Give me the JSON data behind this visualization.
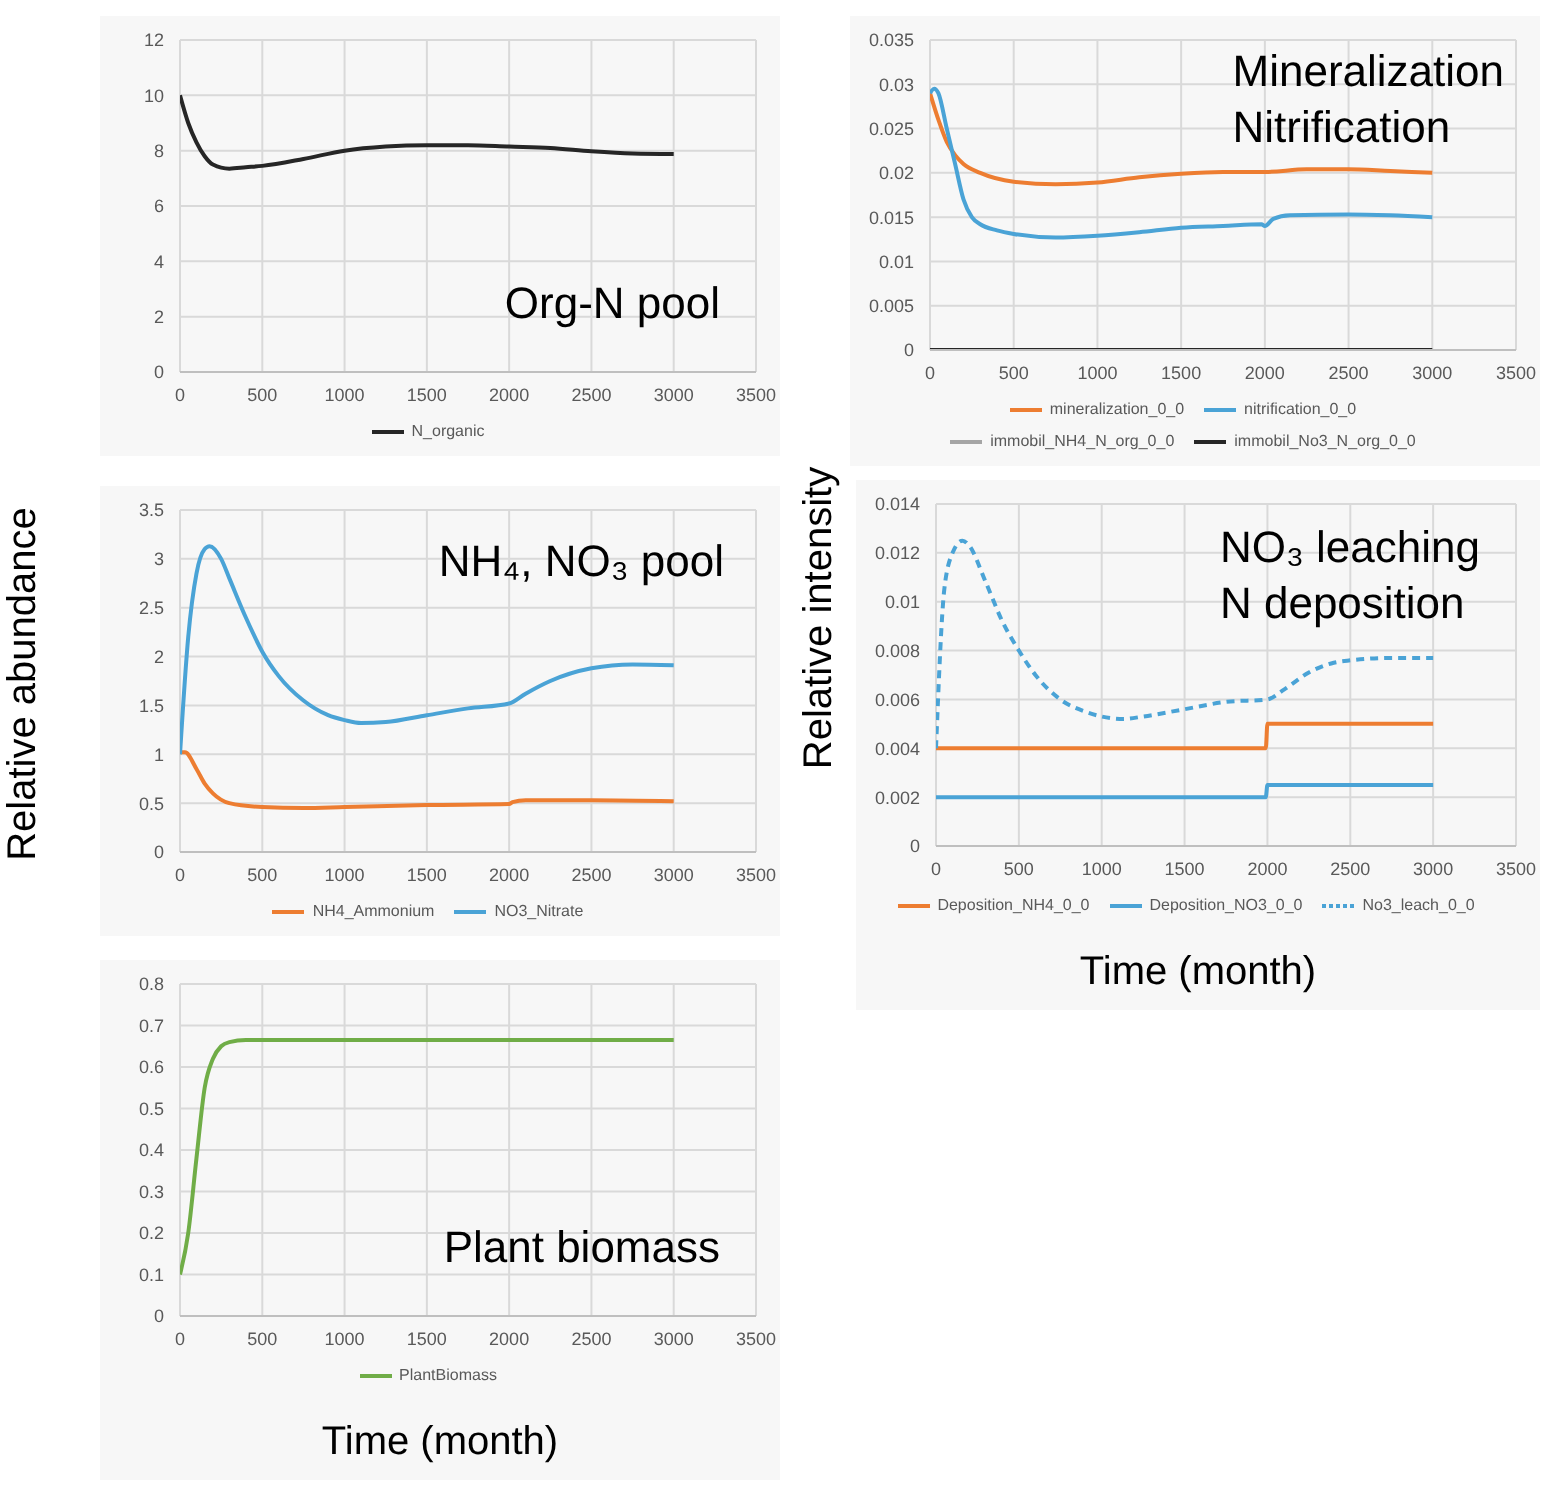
{
  "chart_data": [
    {
      "type": "line",
      "annotations": [
        "Org-N pool"
      ],
      "xlim": [
        0,
        3500
      ],
      "xticks": [
        0,
        500,
        1000,
        1500,
        2000,
        2500,
        3000,
        3500
      ],
      "ylim": [
        0,
        12
      ],
      "yticks": [
        0,
        2,
        4,
        6,
        8,
        10,
        12
      ],
      "grid": true,
      "legend": "bottom",
      "marker": "none",
      "series": [
        {
          "name": "N_organic",
          "color": "#262626",
          "x": [
            0,
            50,
            100,
            150,
            200,
            300,
            400,
            500,
            750,
            1000,
            1250,
            1500,
            1750,
            2000,
            2250,
            2500,
            2750,
            3000
          ],
          "values": [
            10,
            9,
            8.3,
            7.8,
            7.5,
            7.35,
            7.4,
            7.45,
            7.7,
            8.0,
            8.15,
            8.2,
            8.2,
            8.15,
            8.1,
            7.98,
            7.9,
            7.88
          ]
        }
      ]
    },
    {
      "type": "line",
      "annotations": [
        "Mineralization",
        "Nitrification"
      ],
      "xlim": [
        0,
        3500
      ],
      "xticks": [
        0,
        500,
        1000,
        1500,
        2000,
        2500,
        3000,
        3500
      ],
      "ylim": [
        0,
        0.035
      ],
      "yticks": [
        0,
        0.005,
        0.01,
        0.015,
        0.02,
        0.025,
        0.03,
        0.035
      ],
      "grid": true,
      "legend": "bottom",
      "marker": "none",
      "series": [
        {
          "name": "mineralization_0_0",
          "color": "#ed7d31",
          "x": [
            0,
            50,
            100,
            150,
            200,
            300,
            500,
            750,
            1000,
            1250,
            1500,
            1750,
            2000,
            2250,
            2500,
            2750,
            3000
          ],
          "values": [
            0.029,
            0.026,
            0.0235,
            0.022,
            0.021,
            0.02,
            0.019,
            0.0187,
            0.0189,
            0.0195,
            0.0199,
            0.0201,
            0.0201,
            0.0204,
            0.0204,
            0.0202,
            0.02
          ]
        },
        {
          "name": "nitrification_0_0",
          "color": "#4aa3d6",
          "x": [
            0,
            25,
            50,
            100,
            150,
            200,
            250,
            300,
            400,
            500,
            750,
            1000,
            1250,
            1500,
            1750,
            1980,
            2000,
            2050,
            2150,
            2500,
            2750,
            3000
          ],
          "values": [
            0.029,
            0.0295,
            0.029,
            0.025,
            0.021,
            0.017,
            0.015,
            0.0142,
            0.0135,
            0.0131,
            0.0127,
            0.0129,
            0.0133,
            0.0138,
            0.014,
            0.0142,
            0.014,
            0.0148,
            0.0152,
            0.0153,
            0.0152,
            0.015
          ]
        },
        {
          "name": "immobil_NH4_N_org_0_0",
          "color": "#a5a5a5"
        },
        {
          "name": "immobil_No3_N_org_0_0",
          "color": "#262626",
          "x": [
            0,
            3000
          ],
          "values": [
            0,
            0
          ]
        }
      ]
    },
    {
      "type": "line",
      "ylabel": "Relative abundance",
      "annotations": [
        "NH₄, NO₃ pool"
      ],
      "xlim": [
        0,
        3500
      ],
      "xticks": [
        0,
        500,
        1000,
        1500,
        2000,
        2500,
        3000,
        3500
      ],
      "ylim": [
        0,
        3.5
      ],
      "yticks": [
        0,
        0.5,
        1,
        1.5,
        2,
        2.5,
        3,
        3.5
      ],
      "grid": true,
      "legend": "bottom",
      "marker": "none",
      "series": [
        {
          "name": "NH4_Ammonium",
          "color": "#ed7d31",
          "x": [
            0,
            30,
            100,
            150,
            200,
            300,
            500,
            750,
            1000,
            1500,
            2000,
            2020,
            2100,
            2500,
            3000
          ],
          "values": [
            1.02,
            1.02,
            0.85,
            0.7,
            0.6,
            0.5,
            0.46,
            0.45,
            0.46,
            0.48,
            0.49,
            0.51,
            0.53,
            0.53,
            0.52
          ]
        },
        {
          "name": "NO3_Nitrate",
          "color": "#4aa3d6",
          "x": [
            0,
            50,
            100,
            150,
            180,
            250,
            300,
            400,
            500,
            600,
            750,
            900,
            1000,
            1100,
            1250,
            1500,
            1750,
            2000,
            2100,
            2250,
            2500,
            2750,
            3000
          ],
          "values": [
            1.0,
            2.2,
            2.85,
            3.1,
            3.13,
            3.0,
            2.8,
            2.4,
            2.05,
            1.8,
            1.55,
            1.4,
            1.35,
            1.32,
            1.33,
            1.4,
            1.47,
            1.52,
            1.62,
            1.75,
            1.88,
            1.92,
            1.91
          ]
        }
      ]
    },
    {
      "type": "line",
      "ylabel": "Relative intensity",
      "xlabel": "Time (month)",
      "annotations": [
        "NO₃ leaching",
        "N deposition"
      ],
      "xlim": [
        0,
        3500
      ],
      "xticks": [
        0,
        500,
        1000,
        1500,
        2000,
        2500,
        3000,
        3500
      ],
      "ylim": [
        0,
        0.014
      ],
      "yticks": [
        0,
        0.002,
        0.004,
        0.006,
        0.008,
        0.01,
        0.012,
        0.014
      ],
      "grid": true,
      "legend": "bottom",
      "marker": "none",
      "series": [
        {
          "name": "Deposition_NH4_0_0",
          "color": "#ed7d31",
          "line_style": "solid",
          "x": [
            0,
            1990,
            2000,
            3000
          ],
          "values": [
            0.004,
            0.004,
            0.005,
            0.005
          ]
        },
        {
          "name": "Deposition_NO3_0_0",
          "color": "#4aa3d6",
          "line_style": "solid",
          "x": [
            0,
            1990,
            2000,
            3000
          ],
          "values": [
            0.002,
            0.002,
            0.0025,
            0.0025
          ]
        },
        {
          "name": "No3_leach_0_0",
          "color": "#4aa3d6",
          "line_style": "dashed",
          "x": [
            0,
            50,
            100,
            160,
            200,
            300,
            400,
            500,
            600,
            750,
            900,
            1000,
            1130,
            1250,
            1500,
            1750,
            2000,
            2100,
            2250,
            2400,
            2500,
            2750,
            3000
          ],
          "values": [
            0.004,
            0.0105,
            0.012,
            0.0125,
            0.0123,
            0.0108,
            0.0092,
            0.008,
            0.007,
            0.006,
            0.0055,
            0.0053,
            0.0052,
            0.0053,
            0.0056,
            0.0059,
            0.006,
            0.0064,
            0.0071,
            0.0075,
            0.0076,
            0.0077,
            0.0077
          ]
        }
      ]
    },
    {
      "type": "line",
      "xlabel": "Time (month)",
      "annotations": [
        "Plant biomass"
      ],
      "xlim": [
        0,
        3500
      ],
      "xticks": [
        0,
        500,
        1000,
        1500,
        2000,
        2500,
        3000,
        3500
      ],
      "ylim": [
        0,
        0.8
      ],
      "yticks": [
        0,
        0.1,
        0.2,
        0.3,
        0.4,
        0.5,
        0.6,
        0.7,
        0.8
      ],
      "grid": true,
      "legend": "bottom",
      "marker": "none",
      "series": [
        {
          "name": "PlantBiomass",
          "color": "#70ad47",
          "x": [
            0,
            50,
            100,
            150,
            200,
            250,
            300,
            400,
            500,
            3000
          ],
          "values": [
            0.1,
            0.2,
            0.38,
            0.55,
            0.62,
            0.65,
            0.66,
            0.665,
            0.665,
            0.665
          ]
        }
      ]
    }
  ]
}
